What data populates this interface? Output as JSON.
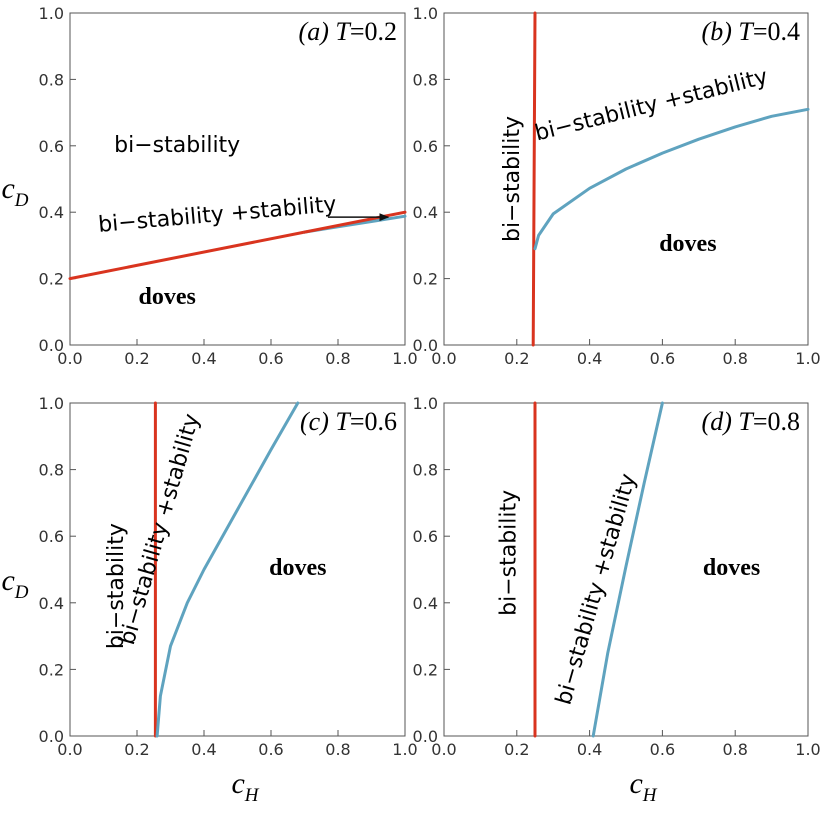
{
  "colors": {
    "red": "#D9341F",
    "blue": "#5FA3BF",
    "arrow": "#111111",
    "frame": "#555555"
  },
  "axes": {
    "xlabel": "c",
    "xlabel_sub": "H",
    "ylabel": "c",
    "ylabel_sub": "D",
    "ticks": [
      "0.0",
      "0.2",
      "0.4",
      "0.6",
      "0.8",
      "1.0"
    ]
  },
  "chart_data": [
    {
      "type": "line",
      "panel_label": {
        "letter": "(a)",
        "variable": "T",
        "value": "=0.2"
      },
      "xlim": [
        0,
        1
      ],
      "ylim": [
        0,
        1
      ],
      "series": [
        {
          "color": "red",
          "x": [
            0,
            0.7
          ],
          "y": [
            0.2,
            0.34
          ]
        },
        {
          "color": "blue",
          "x": [
            0.7,
            0.8,
            0.9,
            1.0
          ],
          "y": [
            0.34,
            0.356,
            0.372,
            0.388
          ]
        },
        {
          "color": "red",
          "x": [
            0.7,
            1.0
          ],
          "y": [
            0.34,
            0.4
          ]
        }
      ],
      "annotations": [
        {
          "text": "bi−stability",
          "x": 0.32,
          "y": 0.6,
          "rotate": 0,
          "style": "plain"
        },
        {
          "text": "bi−stability +stability",
          "x": 0.44,
          "y": 0.39,
          "rotate": -5,
          "style": "plain"
        },
        {
          "text": "doves",
          "x": 0.29,
          "y": 0.14,
          "rotate": 0,
          "style": "bold"
        }
      ],
      "arrow": {
        "from": [
          0.77,
          0.385
        ],
        "to": [
          0.95,
          0.385
        ]
      }
    },
    {
      "type": "line",
      "panel_label": {
        "letter": "(b)",
        "variable": "T",
        "value": "=0.4"
      },
      "xlim": [
        0,
        1
      ],
      "ylim": [
        0,
        1
      ],
      "series": [
        {
          "color": "red",
          "x": [
            0.245,
            0.25
          ],
          "y": [
            0,
            1
          ]
        },
        {
          "color": "blue",
          "x": [
            0.25,
            0.26,
            0.3,
            0.4,
            0.5,
            0.6,
            0.7,
            0.8,
            0.9,
            1.0
          ],
          "y": [
            0.29,
            0.33,
            0.395,
            0.472,
            0.53,
            0.578,
            0.62,
            0.657,
            0.689,
            0.71
          ]
        }
      ],
      "annotations": [
        {
          "text": "bi−stability",
          "x": 0.19,
          "y": 0.5,
          "rotate": -90,
          "style": "plain"
        },
        {
          "text": "bi−stability +stability",
          "x": 0.57,
          "y": 0.72,
          "rotate": -14,
          "style": "plain"
        },
        {
          "text": "doves",
          "x": 0.67,
          "y": 0.3,
          "rotate": 0,
          "style": "bold"
        }
      ]
    },
    {
      "type": "line",
      "panel_label": {
        "letter": "(c)",
        "variable": "T",
        "value": "=0.6"
      },
      "xlim": [
        0,
        1
      ],
      "ylim": [
        0,
        1
      ],
      "series": [
        {
          "color": "red",
          "x": [
            0.255,
            0.255
          ],
          "y": [
            0,
            1
          ]
        },
        {
          "color": "blue",
          "x": [
            0.26,
            0.27,
            0.3,
            0.35,
            0.4,
            0.45,
            0.5,
            0.55,
            0.6,
            0.68
          ],
          "y": [
            0,
            0.12,
            0.27,
            0.4,
            0.5,
            0.59,
            0.68,
            0.77,
            0.86,
            1.0
          ]
        }
      ],
      "annotations": [
        {
          "text": "bi−stability",
          "x": 0.14,
          "y": 0.45,
          "rotate": -90,
          "style": "plain"
        },
        {
          "text": "bi−stability +stability",
          "x": 0.27,
          "y": 0.62,
          "rotate": -74,
          "style": "plain"
        },
        {
          "text": "doves",
          "x": 0.68,
          "y": 0.5,
          "rotate": 0,
          "style": "bold"
        }
      ]
    },
    {
      "type": "line",
      "panel_label": {
        "letter": "(d)",
        "variable": "T",
        "value": "=0.8"
      },
      "xlim": [
        0,
        1
      ],
      "ylim": [
        0,
        1
      ],
      "series": [
        {
          "color": "red",
          "x": [
            0.25,
            0.25
          ],
          "y": [
            0,
            1
          ]
        },
        {
          "color": "blue",
          "x": [
            0.41,
            0.45,
            0.5,
            0.55,
            0.6
          ],
          "y": [
            0,
            0.25,
            0.51,
            0.76,
            1.0
          ]
        }
      ],
      "annotations": [
        {
          "text": "bi−stability",
          "x": 0.18,
          "y": 0.55,
          "rotate": -90,
          "style": "plain"
        },
        {
          "text": "bi−stability +stability",
          "x": 0.42,
          "y": 0.44,
          "rotate": -74,
          "style": "plain"
        },
        {
          "text": "doves",
          "x": 0.79,
          "y": 0.5,
          "rotate": 0,
          "style": "bold"
        }
      ]
    }
  ]
}
